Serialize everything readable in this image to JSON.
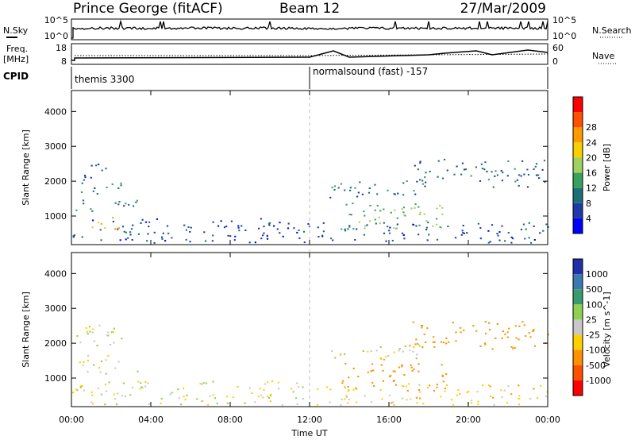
{
  "header": {
    "station": "Prince George (fitACF)",
    "beam": "Beam 12",
    "date": "27/Mar/2009"
  },
  "nsky_panel": {
    "left_label": "N.Sky",
    "right_label": "N.Search",
    "left_ticks": [
      "10^5",
      "10^0"
    ],
    "right_ticks": [
      "10^5",
      "10^0"
    ]
  },
  "freq_panel": {
    "left_label_1": "Freq.",
    "left_label_2": "[MHz]",
    "right_label": "Nave",
    "left_ticks": [
      "18",
      "8"
    ],
    "right_ticks": [
      "60",
      "0"
    ]
  },
  "cpid_panel": {
    "label": "CPID",
    "segments": [
      {
        "name": "themis 3300",
        "start": 0,
        "end": 12
      },
      {
        "name": "normalsound (fast) -157",
        "start": 12,
        "end": 24
      }
    ]
  },
  "power_colorbar": {
    "label": "Power [dB]",
    "ticks": [
      "4",
      "8",
      "12",
      "16",
      "20",
      "24",
      "28"
    ],
    "colors": [
      "#0000ff",
      "#1f3aa8",
      "#1e6e78",
      "#3aa060",
      "#9fd060",
      "#f6d000",
      "#ff9a00",
      "#ff5000",
      "#ff0000"
    ]
  },
  "velocity_colorbar": {
    "label": "Velocity [m s^-1]",
    "ticks": [
      "1000",
      "500",
      "100",
      "25",
      "-25",
      "-100",
      "-500",
      "-1000"
    ],
    "colors": [
      "#1f2fa8",
      "#3a7ab0",
      "#3a9a70",
      "#90d050",
      "#c8c8c8",
      "#ffd000",
      "#ff9000",
      "#ff5000",
      "#ff0000"
    ]
  },
  "chart_data": {
    "type": "heatmap",
    "xlabel": "Time UT",
    "ylabel": "Slant Range [km]",
    "x_ticks": [
      "00:00",
      "04:00",
      "08:00",
      "12:00",
      "16:00",
      "20:00",
      "00:00"
    ],
    "y_ticks": [
      "1000",
      "2000",
      "3000",
      "4000"
    ],
    "xlim": [
      0,
      24
    ],
    "ylim": [
      180,
      4600
    ],
    "power_patches": [
      {
        "t0": 0.0,
        "t1": 12.0,
        "r0": 200,
        "r1": 900,
        "v": 6
      },
      {
        "t0": 0.2,
        "t1": 3.3,
        "r0": 1100,
        "r1": 1500,
        "v": 11
      },
      {
        "t0": 0.2,
        "t1": 2.5,
        "r0": 1600,
        "r1": 2000,
        "v": 10
      },
      {
        "t0": 0.5,
        "t1": 2.2,
        "r0": 2000,
        "r1": 2500,
        "v": 9
      },
      {
        "t0": 1.0,
        "t1": 2.5,
        "r0": 600,
        "r1": 1000,
        "v": 26
      },
      {
        "t0": 12.3,
        "t1": 24.0,
        "r0": 200,
        "r1": 800,
        "v": 7
      },
      {
        "t0": 13.5,
        "t1": 19.0,
        "r0": 600,
        "r1": 1400,
        "v": 16
      },
      {
        "t0": 13.0,
        "t1": 18.0,
        "r0": 1500,
        "r1": 2000,
        "v": 10
      },
      {
        "t0": 17.0,
        "t1": 24.0,
        "r0": 1800,
        "r1": 2600,
        "v": 9
      }
    ],
    "velocity_patches": [
      {
        "t0": 0.0,
        "t1": 12.0,
        "r0": 200,
        "r1": 900,
        "v": 0
      },
      {
        "t0": 0.2,
        "t1": 3.3,
        "r0": 1100,
        "r1": 1500,
        "v": 0
      },
      {
        "t0": 0.2,
        "t1": 2.5,
        "r0": 1600,
        "r1": 2500,
        "v": 10
      },
      {
        "t0": 12.3,
        "t1": 24.0,
        "r0": 200,
        "r1": 800,
        "v": -50
      },
      {
        "t0": 13.5,
        "t1": 19.0,
        "r0": 600,
        "r1": 1400,
        "v": -150
      },
      {
        "t0": 13.0,
        "t1": 18.0,
        "r0": 1500,
        "r1": 2000,
        "v": 0
      },
      {
        "t0": 17.0,
        "t1": 24.0,
        "r0": 1800,
        "r1": 2600,
        "v": -300
      }
    ]
  }
}
